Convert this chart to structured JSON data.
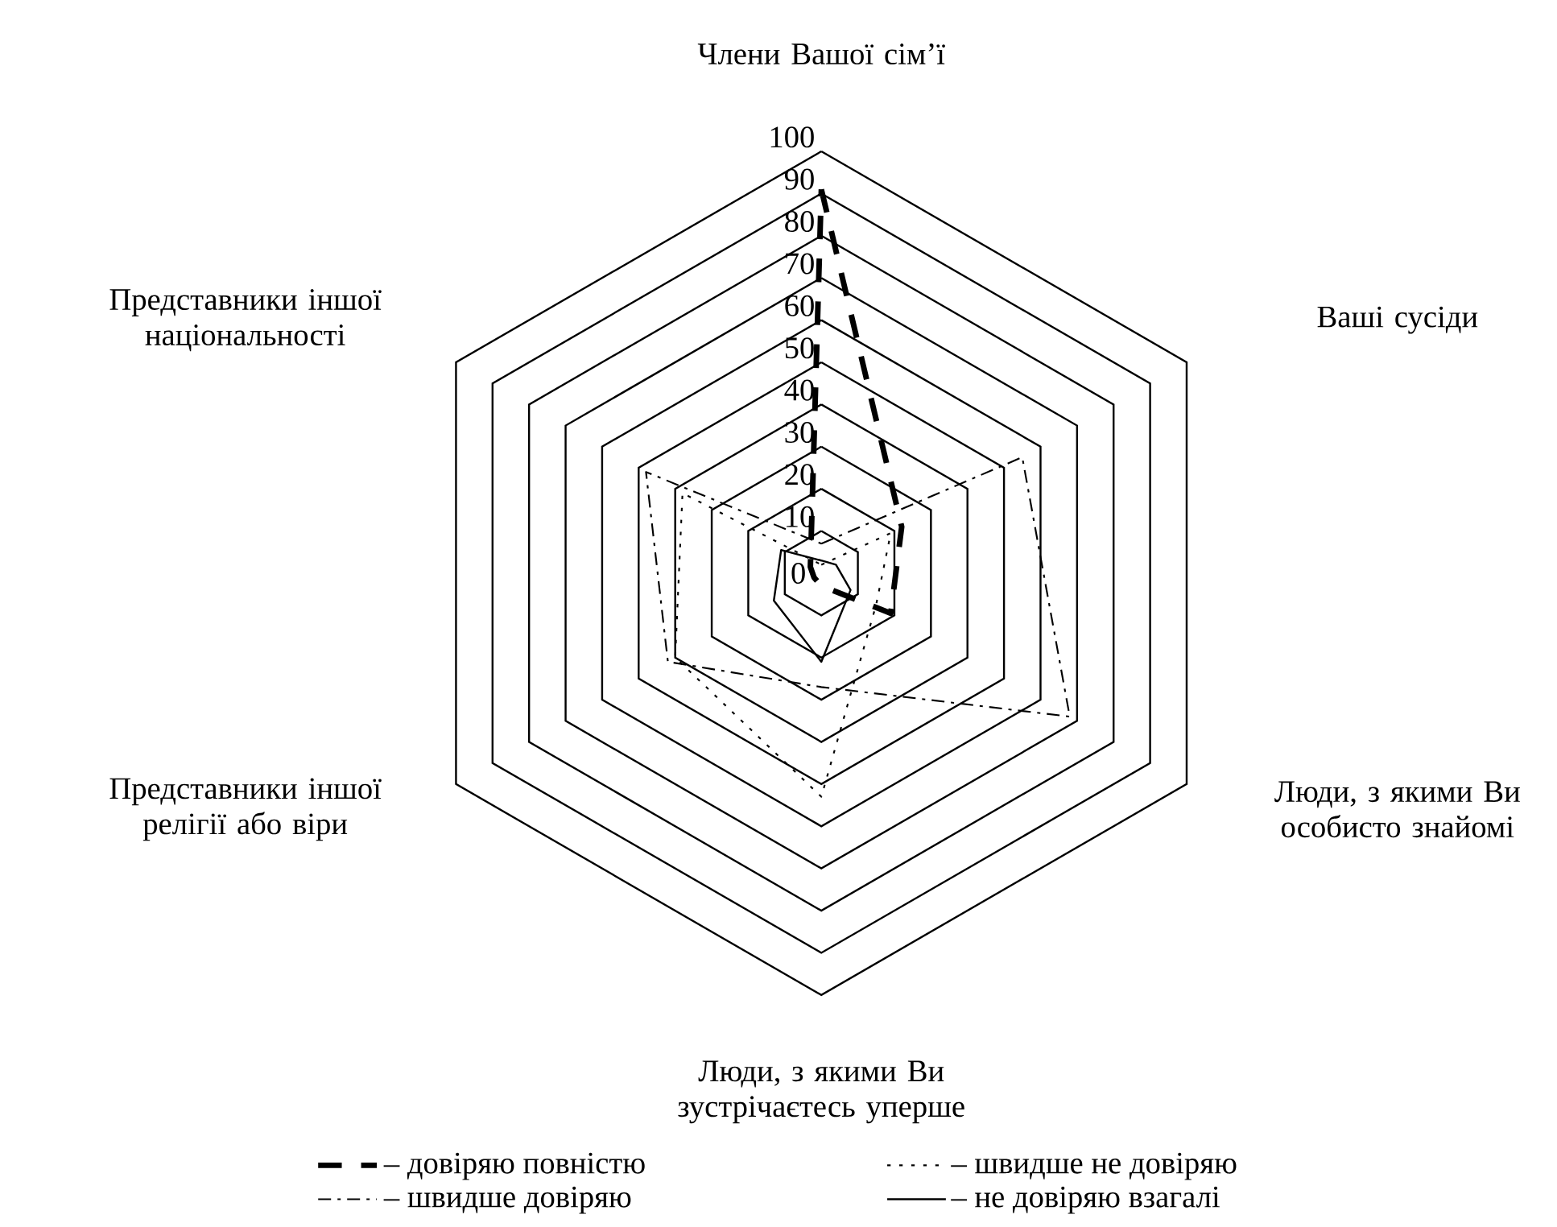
{
  "chart_data": {
    "type": "radar",
    "categories": [
      "Члени Вашої сім’ї",
      "Ваші сусіди",
      "Люди, з якими Ви особисто знайомі",
      "Люди, з якими Ви зустрічаєтесь уперше",
      "Представники іншої релігії або віри",
      "Представники іншої національності"
    ],
    "ylim": [
      0,
      100
    ],
    "yticks": [
      0,
      10,
      20,
      30,
      40,
      50,
      60,
      70,
      80,
      90,
      100
    ],
    "grid": true,
    "legend": "bottom",
    "series": [
      {
        "name": "– довіряю повністю",
        "color": "#000000",
        "line_style": "dashed",
        "values": [
          91,
          22,
          19,
          3,
          2,
          3
        ]
      },
      {
        "name": "– швидше не довіряю",
        "color": "#000000",
        "line_style": "dotted",
        "values": [
          2,
          19,
          15,
          53,
          40,
          38
        ]
      },
      {
        "name": "– швидше довіряю",
        "color": "#000000",
        "line_style": "dashdot",
        "values": [
          7,
          55,
          68,
          27,
          42,
          48
        ]
      },
      {
        "name": "– не довіряю взагалі",
        "color": "#000000",
        "line_style": "solid",
        "values": [
          3,
          4,
          8,
          21,
          13,
          11
        ]
      }
    ]
  }
}
